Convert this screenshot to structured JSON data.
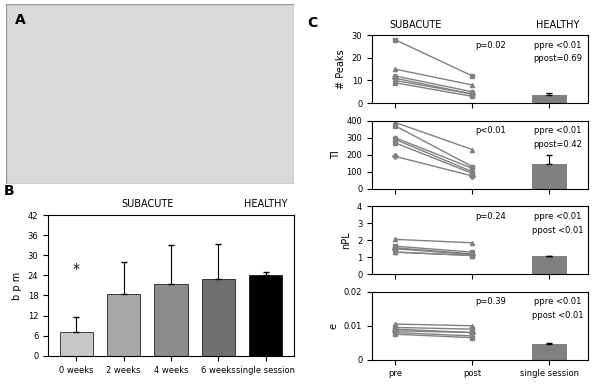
{
  "panel_a": {
    "label": "A"
  },
  "chart_data": [
    {
      "panel": "B",
      "type": "bar",
      "group_labels": [
        "SUBACUTE",
        "HEALTHY"
      ],
      "ylabel": "b p m",
      "categories": [
        "0 weeks",
        "2 weeks",
        "4 weeks",
        "6 weeks",
        "single session"
      ],
      "values": [
        7,
        18.5,
        21.5,
        23,
        24
      ],
      "errors": [
        4.5,
        9.5,
        11.5,
        10.5,
        1
      ],
      "colors": [
        "#c8c8c8",
        "#a8a8a8",
        "#8c8c8c",
        "#707070",
        "#000000"
      ],
      "ylim": [
        0,
        42
      ],
      "yticks": [
        0,
        6,
        12,
        18,
        24,
        30,
        36,
        42
      ],
      "annotations": [
        {
          "text": "*",
          "category": "0 weeks",
          "value": 26
        }
      ]
    },
    {
      "panel": "C",
      "type": "line",
      "group_labels": [
        "SUBACUTE",
        "HEALTHY"
      ],
      "ylabel": "# Peaks",
      "categories": [
        "pre",
        "post",
        "single session"
      ],
      "tick_labels": "y",
      "ylim": [
        0,
        30
      ],
      "yticks": [
        0,
        10,
        20,
        30
      ],
      "stat_subacute": "p=0.02",
      "stat_healthy": [
        "ppre <0.01",
        "ppost=0.69"
      ],
      "series": [
        {
          "color": "#808080",
          "marker": "square",
          "values": [
            28,
            12,
            null
          ]
        },
        {
          "color": "#808080",
          "marker": "triangle",
          "values": [
            15,
            8,
            null
          ]
        },
        {
          "color": "#808080",
          "marker": "circle",
          "values": [
            12,
            5,
            null
          ]
        },
        {
          "color": "#808080",
          "marker": "diamond",
          "values": [
            11,
            4,
            null
          ]
        },
        {
          "color": "#808080",
          "marker": "triangle",
          "values": [
            10,
            4,
            null
          ]
        },
        {
          "color": "#808080",
          "marker": "square",
          "values": [
            9,
            3,
            null
          ]
        },
        {
          "type": "bar",
          "color": "#808080",
          "values": [
            null,
            null,
            3.5
          ],
          "errors": [
            null,
            null,
            0.8
          ]
        }
      ]
    },
    {
      "panel": "C",
      "type": "line",
      "ylabel": "TI",
      "categories": [
        "pre",
        "post",
        "single session"
      ],
      "tick_labels": "y",
      "ylim": [
        0,
        400
      ],
      "yticks": [
        0,
        100,
        200,
        300,
        400
      ],
      "stat_subacute": "p<0.01",
      "stat_healthy": [
        "ppre <0.01",
        "ppost=0.42"
      ],
      "series": [
        {
          "color": "#808080",
          "marker": "triangle",
          "values": [
            390,
            230,
            null
          ]
        },
        {
          "color": "#808080",
          "marker": "square",
          "values": [
            370,
            130,
            null
          ]
        },
        {
          "color": "#808080",
          "marker": "circle",
          "values": [
            300,
            120,
            null
          ]
        },
        {
          "color": "#808080",
          "marker": "triangle",
          "values": [
            290,
            100,
            null
          ]
        },
        {
          "color": "#808080",
          "marker": "square",
          "values": [
            270,
            90,
            null
          ]
        },
        {
          "color": "#808080",
          "marker": "diamond",
          "values": [
            190,
            75,
            null
          ]
        },
        {
          "type": "bar",
          "color": "#808080",
          "values": [
            null,
            null,
            145
          ],
          "errors": [
            null,
            null,
            55
          ]
        }
      ]
    },
    {
      "panel": "C",
      "type": "line",
      "ylabel": "nPL",
      "categories": [
        "pre",
        "post",
        "single session"
      ],
      "tick_labels": "y",
      "ylim": [
        0,
        4
      ],
      "yticks": [
        0,
        1,
        2,
        3,
        4
      ],
      "stat_subacute": "p=0.24",
      "stat_healthy": [
        "ppre <0.01",
        "ppost <0.01"
      ],
      "series": [
        {
          "color": "#808080",
          "marker": "triangle",
          "values": [
            2.05,
            1.85,
            null
          ]
        },
        {
          "color": "#808080",
          "marker": "square",
          "values": [
            1.65,
            1.3,
            null
          ]
        },
        {
          "color": "#808080",
          "marker": "circle",
          "values": [
            1.55,
            1.2,
            null
          ]
        },
        {
          "color": "#808080",
          "marker": "diamond",
          "values": [
            1.5,
            1.15,
            null
          ]
        },
        {
          "color": "#808080",
          "marker": "triangle",
          "values": [
            1.3,
            1.1,
            null
          ]
        },
        {
          "color": "#808080",
          "marker": "square",
          "values": [
            1.3,
            1.1,
            null
          ]
        },
        {
          "type": "bar",
          "color": "#808080",
          "values": [
            null,
            null,
            1.05
          ],
          "errors": [
            null,
            null,
            0.05
          ]
        }
      ]
    },
    {
      "panel": "C",
      "type": "line",
      "ylabel": "e",
      "categories": [
        "pre",
        "post",
        "single session"
      ],
      "ylim": [
        0,
        0.02
      ],
      "yticks": [
        0,
        0.01,
        0.02
      ],
      "stat_subacute": "p=0.39",
      "stat_healthy": [
        "ppre <0.01",
        "ppost <0.01"
      ],
      "series": [
        {
          "color": "#808080",
          "marker": "triangle",
          "values": [
            0.0105,
            0.01,
            null
          ]
        },
        {
          "color": "#808080",
          "marker": "square",
          "values": [
            0.0095,
            0.009,
            null
          ]
        },
        {
          "color": "#808080",
          "marker": "circle",
          "values": [
            0.009,
            0.008,
            null
          ]
        },
        {
          "color": "#808080",
          "marker": "diamond",
          "values": [
            0.0085,
            0.008,
            null
          ]
        },
        {
          "color": "#808080",
          "marker": "triangle",
          "values": [
            0.008,
            0.007,
            null
          ]
        },
        {
          "color": "#808080",
          "marker": "square",
          "values": [
            0.0075,
            0.0065,
            null
          ]
        },
        {
          "type": "bar",
          "color": "#808080",
          "values": [
            null,
            null,
            0.0045
          ],
          "errors": [
            null,
            null,
            0.0004
          ]
        }
      ]
    }
  ]
}
